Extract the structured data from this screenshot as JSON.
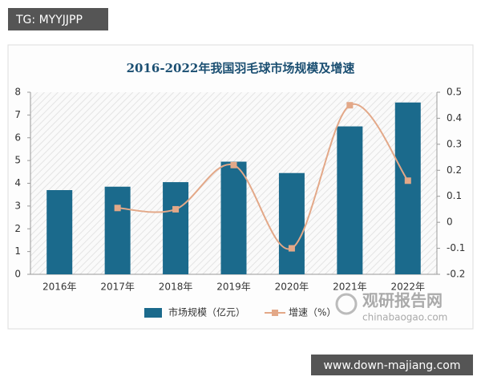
{
  "badge": "TG: MYYJJPP",
  "chart_data": {
    "type": "bar-line",
    "title": "2016-2022年我国羽毛球市场规模及增速",
    "categories": [
      "2016年",
      "2017年",
      "2018年",
      "2019年",
      "2020年",
      "2021年",
      "2022年"
    ],
    "series": [
      {
        "name": "市场规模（亿元）",
        "type": "bar",
        "color": "#1b6a8c",
        "values": [
          3.7,
          3.85,
          4.05,
          4.95,
          4.45,
          6.5,
          7.55
        ]
      },
      {
        "name": "增速（%）",
        "type": "line",
        "axis": "y2",
        "color": "#e3a888",
        "values": [
          null,
          0.055,
          0.05,
          0.22,
          -0.1,
          0.45,
          0.16
        ]
      }
    ],
    "ylim": [
      0,
      8
    ],
    "yticks": [
      0,
      1,
      2,
      3,
      4,
      5,
      6,
      7,
      8
    ],
    "y2lim": [
      -0.2,
      0.5
    ],
    "y2ticks": [
      -0.2,
      -0.1,
      0,
      0.1,
      0.2,
      0.3,
      0.4,
      0.5
    ],
    "legend": "bottom"
  },
  "watermark": {
    "name": "观研报告网",
    "url": "chinabaogao.com"
  },
  "footer_badge": "www.down-majiang.com"
}
